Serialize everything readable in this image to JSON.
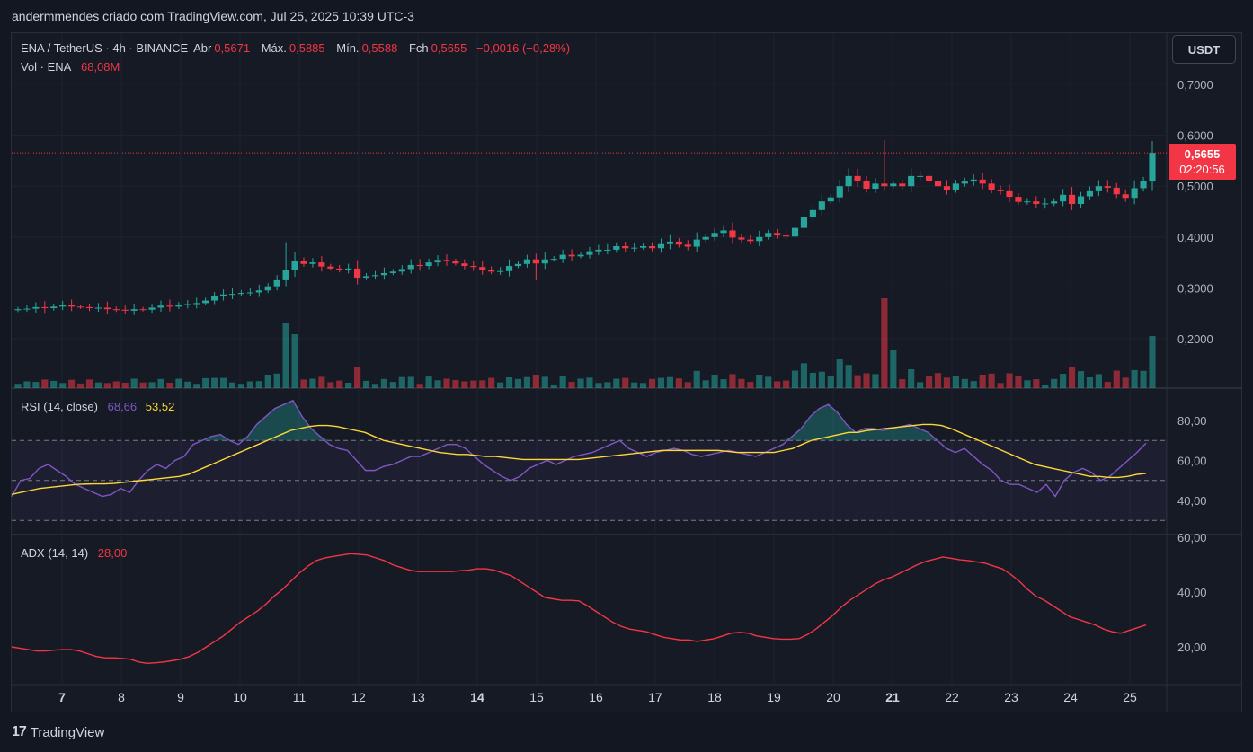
{
  "caption": "andermmendes criado com TradingView.com, Jul 25, 2025 10:39 UTC-3",
  "legend": {
    "symbol": "ENA / TetherUS · 4h · BINANCE",
    "open_label": "Abr",
    "open": "0,5671",
    "high_label": "Máx.",
    "high": "0,5885",
    "low_label": "Mín.",
    "low": "0,5588",
    "close_label": "Fch",
    "close": "0,5655",
    "change": "−0,0016 (−0,28%)",
    "vol_label": "Vol · ENA",
    "vol": "68,08M"
  },
  "rsi_legend": {
    "label": "RSI (14, close)",
    "rsi": "68,66",
    "ma": "53,52"
  },
  "adx_legend": {
    "label": "ADX (14, 14)",
    "value": "28,00"
  },
  "currency_button": "USDT",
  "price_tag": {
    "price": "0,5655",
    "countdown": "02:20:56"
  },
  "price_axis": [
    "0,7000",
    "0,6000",
    "0,5000",
    "0,4000",
    "0,3000",
    "0,2000"
  ],
  "rsi_axis": [
    "80,00",
    "60,00",
    "40,00"
  ],
  "adx_axis": [
    "60,00",
    "40,00",
    "20,00"
  ],
  "time_axis": [
    "7",
    "8",
    "9",
    "10",
    "11",
    "12",
    "13",
    "14",
    "15",
    "16",
    "17",
    "18",
    "19",
    "20",
    "21",
    "22",
    "23",
    "24",
    "25"
  ],
  "brand": "TradingView",
  "colors": {
    "up": "#26a69a",
    "down": "#f23645",
    "rsi": "#7e57c2",
    "rsi_ma": "#fdd835",
    "adx": "#f23645"
  },
  "chart_data": [
    {
      "type": "candlestick",
      "title": "ENA / TetherUS · 4h · BINANCE",
      "x_unit": "bar index (4h); day labels 7–25",
      "ylim": [
        0.17,
        0.72
      ],
      "closes": [
        0.258,
        0.259,
        0.262,
        0.26,
        0.263,
        0.266,
        0.263,
        0.262,
        0.26,
        0.261,
        0.258,
        0.257,
        0.255,
        0.258,
        0.257,
        0.261,
        0.265,
        0.263,
        0.266,
        0.268,
        0.27,
        0.275,
        0.283,
        0.287,
        0.288,
        0.29,
        0.291,
        0.295,
        0.303,
        0.315,
        0.335,
        0.353,
        0.347,
        0.35,
        0.342,
        0.338,
        0.336,
        0.338,
        0.32,
        0.323,
        0.325,
        0.329,
        0.332,
        0.337,
        0.345,
        0.343,
        0.35,
        0.355,
        0.352,
        0.348,
        0.343,
        0.341,
        0.336,
        0.332,
        0.333,
        0.343,
        0.347,
        0.356,
        0.348,
        0.356,
        0.357,
        0.365,
        0.362,
        0.365,
        0.372,
        0.375,
        0.375,
        0.382,
        0.378,
        0.379,
        0.382,
        0.378,
        0.386,
        0.391,
        0.385,
        0.381,
        0.395,
        0.4,
        0.408,
        0.413,
        0.399,
        0.395,
        0.392,
        0.4,
        0.408,
        0.403,
        0.401,
        0.418,
        0.44,
        0.453,
        0.47,
        0.478,
        0.5,
        0.52,
        0.51,
        0.495,
        0.505,
        0.5,
        0.505,
        0.5,
        0.52,
        0.52,
        0.51,
        0.5,
        0.493,
        0.505,
        0.509,
        0.513,
        0.505,
        0.493,
        0.49,
        0.479,
        0.469,
        0.47,
        0.465,
        0.466,
        0.47,
        0.483,
        0.465,
        0.48,
        0.49,
        0.5,
        0.497,
        0.484,
        0.477,
        0.496,
        0.51,
        0.5655
      ],
      "up_color": "#26a69a",
      "down_color": "#f23645",
      "last_price": 0.5655,
      "volume_label": "Vol · ENA",
      "volume_last": "68,08M"
    },
    {
      "type": "line",
      "title": "RSI (14, close)",
      "ylim": [
        25,
        95
      ],
      "bands": [
        30,
        50,
        70
      ],
      "series": [
        {
          "values": [
            42,
            50,
            51,
            56,
            58,
            55,
            52,
            48,
            46,
            44,
            42,
            43,
            46,
            44,
            50,
            55,
            58,
            56,
            60,
            62,
            68,
            70,
            72,
            73,
            70,
            68,
            72,
            78,
            82,
            86,
            88,
            90,
            82,
            76,
            72,
            68,
            66,
            65,
            60,
            55,
            55,
            57,
            58,
            60,
            62,
            62,
            64,
            66,
            68,
            68,
            66,
            62,
            58,
            55,
            52,
            50,
            52,
            56,
            58,
            60,
            58,
            60,
            62,
            63,
            64,
            66,
            68,
            70,
            66,
            64,
            62,
            64,
            65,
            66,
            65,
            63,
            62,
            63,
            64,
            65,
            64,
            63,
            62,
            64,
            66,
            68,
            72,
            76,
            82,
            86,
            88,
            84,
            78,
            74,
            76,
            76,
            75,
            76,
            77,
            78,
            76,
            74,
            70,
            66,
            64,
            66,
            62,
            58,
            55,
            50,
            48,
            48,
            46,
            44,
            48,
            42,
            50,
            54,
            56,
            54,
            50,
            52,
            56,
            60,
            64,
            68.66
          ]
        },
        {
          "values": [
            43,
            44,
            45,
            46,
            46.5,
            47,
            47.5,
            48,
            48.2,
            48.3,
            48.3,
            48.5,
            49,
            49.5,
            50,
            50.5,
            51,
            51.5,
            52,
            53,
            55,
            57,
            59,
            61,
            63,
            65,
            67,
            69,
            71,
            73,
            75,
            76,
            77,
            77.5,
            77.5,
            77,
            76,
            75,
            74,
            72,
            70,
            69,
            68,
            67,
            66,
            65,
            64,
            63.5,
            63,
            63,
            62.5,
            62,
            62,
            61.5,
            61,
            60.5,
            60.5,
            60.5,
            60.5,
            60.5,
            60.5,
            60.5,
            61,
            61.5,
            62,
            62.5,
            63,
            63.5,
            64,
            64.5,
            65,
            65,
            65,
            65,
            65,
            65,
            65,
            64.5,
            64,
            64,
            64,
            64,
            64,
            65,
            66,
            68,
            70,
            71,
            72,
            73,
            74,
            74,
            75,
            75.5,
            76,
            76.5,
            77,
            77.5,
            78,
            78,
            77.5,
            76,
            74,
            72,
            70,
            68,
            66,
            64,
            62,
            60,
            58,
            57,
            56,
            55,
            54,
            53,
            52,
            52,
            51.5,
            51.5,
            52,
            53,
            53.52
          ]
        }
      ]
    },
    {
      "type": "line",
      "title": "ADX (14, 14)",
      "ylim": [
        0,
        60
      ],
      "series": [
        {
          "values": [
            20,
            19.5,
            19,
            18.5,
            18.5,
            18.8,
            19,
            19,
            18.5,
            17.5,
            16.5,
            16,
            16,
            15.8,
            15.5,
            14.5,
            14,
            14.2,
            14.5,
            15,
            15.5,
            16.5,
            18,
            20,
            22,
            24,
            26.5,
            29,
            31,
            33,
            35.5,
            38.5,
            41,
            44,
            47,
            49.5,
            51.5,
            52.5,
            53,
            53.5,
            54,
            53.8,
            53.5,
            52.5,
            51.5,
            50,
            49,
            48,
            47.5,
            47.5,
            47.5,
            47.5,
            47.5,
            47.8,
            48,
            48.5,
            48.5,
            48,
            47,
            46,
            44,
            42,
            40,
            38,
            37.5,
            37,
            37,
            36.8,
            35,
            33,
            31,
            29,
            27.5,
            26.5,
            26,
            25.5,
            24.5,
            23.5,
            23,
            22.5,
            22.5,
            22,
            22.5,
            23,
            24,
            25,
            25.3,
            25,
            24,
            23.5,
            23,
            22.8,
            22.8,
            23,
            24.5,
            26.5,
            29,
            31.5,
            34.5,
            37,
            39,
            41,
            43,
            44.5,
            45.5,
            47,
            48.5,
            50,
            51.2,
            52,
            52.8,
            52.3,
            51.8,
            51.5,
            51,
            50.5,
            49.5,
            48.5,
            46.5,
            44,
            41,
            38.5,
            37,
            35,
            33,
            31,
            30,
            29,
            28,
            26.5,
            25.5,
            25,
            26,
            27,
            28
          ]
        }
      ]
    }
  ]
}
